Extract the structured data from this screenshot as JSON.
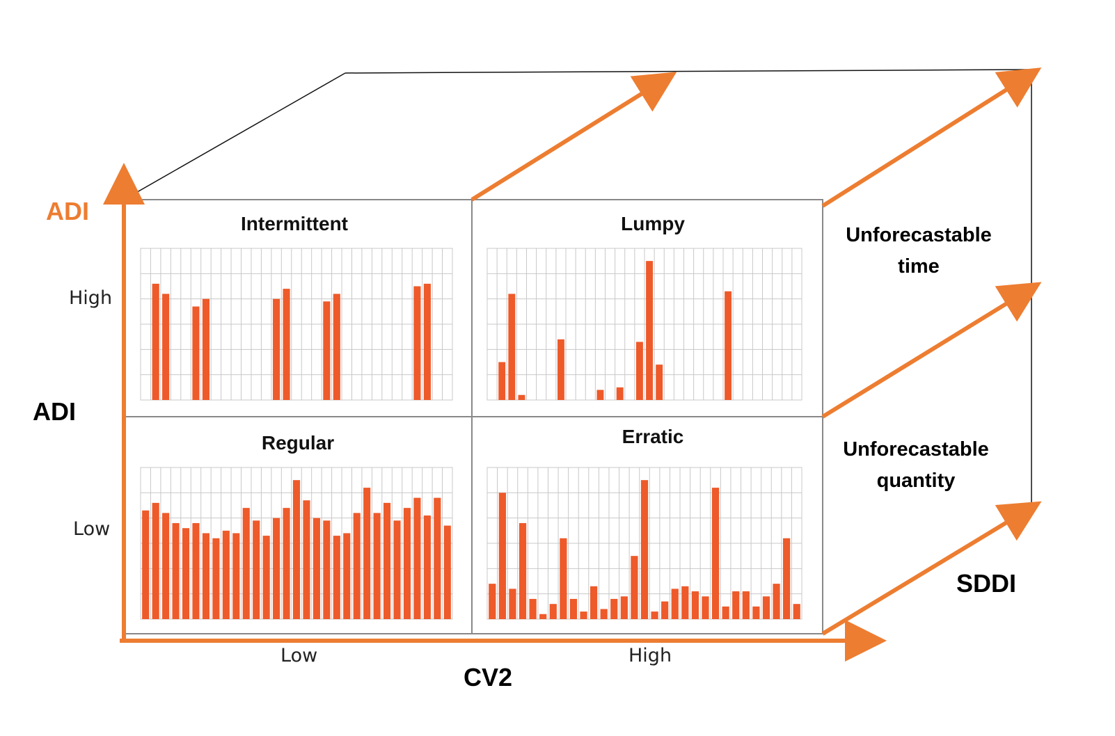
{
  "colors": {
    "accent": "#ed7d31",
    "bar": "#ee5a2a",
    "grid": "#c8c8c8",
    "frame": "#888888"
  },
  "axes": {
    "y_axis_label_orange": "ADI",
    "y_axis_label_black": "ADI",
    "x_axis_label": "CV2",
    "z_axis_label": "SDDI",
    "y_ticks": [
      "High",
      "Low"
    ],
    "x_ticks": [
      "Low",
      "High"
    ]
  },
  "side_notes": {
    "upper": [
      "Unforecastable",
      "time"
    ],
    "lower": [
      "Unforecastable",
      "quantity"
    ]
  },
  "chart_data": [
    {
      "type": "bar",
      "title": "Intermittent",
      "ylim": [
        0,
        6
      ],
      "values": [
        0,
        4.6,
        4.2,
        0,
        0,
        3.7,
        4.0,
        0,
        0,
        0,
        0,
        0,
        0,
        4.0,
        4.4,
        0,
        0,
        0,
        3.9,
        4.2,
        0,
        0,
        0,
        0,
        0,
        0,
        0,
        4.5,
        4.6,
        0,
        0
      ]
    },
    {
      "type": "bar",
      "title": "Lumpy",
      "ylim": [
        0,
        6
      ],
      "values": [
        0,
        1.5,
        4.2,
        0.2,
        0,
        0,
        0,
        2.4,
        0,
        0,
        0,
        0.4,
        0,
        0.5,
        0,
        2.3,
        5.5,
        1.4,
        0,
        0,
        0,
        0,
        0,
        0,
        4.3,
        0,
        0,
        0,
        0,
        0,
        0,
        0
      ]
    },
    {
      "type": "bar",
      "title": "Regular",
      "ylim": [
        0,
        6
      ],
      "values": [
        4.3,
        4.6,
        4.2,
        3.8,
        3.6,
        3.8,
        3.4,
        3.2,
        3.5,
        3.4,
        4.4,
        3.9,
        3.3,
        4.0,
        4.4,
        5.5,
        4.7,
        4.0,
        3.9,
        3.3,
        3.4,
        4.2,
        5.2,
        4.2,
        4.6,
        3.9,
        4.4,
        4.8,
        4.1,
        4.8,
        3.7
      ]
    },
    {
      "type": "bar",
      "title": "Erratic",
      "ylim": [
        0,
        6
      ],
      "values": [
        1.4,
        5.0,
        1.2,
        3.8,
        0.8,
        0.2,
        0.6,
        3.2,
        0.8,
        0.3,
        1.3,
        0.4,
        0.8,
        0.9,
        2.5,
        5.5,
        0.3,
        0.7,
        1.2,
        1.3,
        1.1,
        0.9,
        5.2,
        0.5,
        1.1,
        1.1,
        0.5,
        0.9,
        1.4,
        3.2,
        0.6
      ]
    }
  ]
}
